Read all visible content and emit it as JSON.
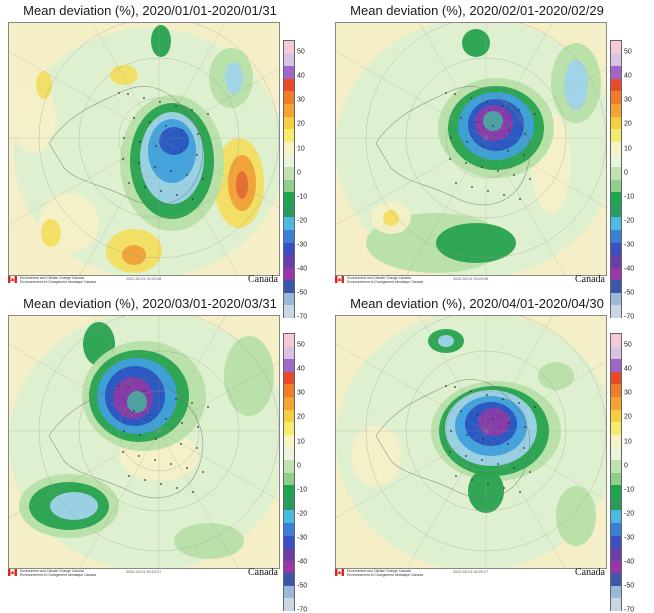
{
  "panels": [
    {
      "id": "jan",
      "title": "Mean deviation (%), 2020/01/01-2020/01/31",
      "timestamp": "2020-02-01 00:20:08"
    },
    {
      "id": "feb",
      "title": "Mean deviation (%), 2020/02/01-2020/02/29",
      "timestamp": "2020-03-01 00:20:08"
    },
    {
      "id": "mar",
      "title": "Mean deviation (%), 2020/03/01-2020/03/31",
      "timestamp": "2020-04-01 00:20:27"
    },
    {
      "id": "apr",
      "title": "Mean deviation (%), 2020/04/01-2020/04/30",
      "timestamp": "2020-05-01 00:20:27"
    }
  ],
  "legend": {
    "ticks": [
      "50",
      "40",
      "30",
      "20",
      "10",
      "0",
      "-10",
      "-20",
      "-30",
      "-40",
      "-50",
      "-70"
    ],
    "colors": [
      "#f6c9d6",
      "#d9c3e4",
      "#a066c8",
      "#e84a2a",
      "#f07d2a",
      "#f5a434",
      "#f5cf3f",
      "#f4ec6a",
      "#f7f3c4",
      "#e8f4dc",
      "#bfe2b0",
      "#8fcf8a",
      "#1fa54d",
      "#2a9b5e",
      "#4cb9e3",
      "#3a7fd6",
      "#3a4fc2",
      "#6a3ea8",
      "#9a37a8",
      "#3b58a8",
      "#9cb8d8",
      "#c9d6e6"
    ]
  },
  "footer": {
    "org_line1": "Environment and Climate Change Canada",
    "org_line2": "Environnement et Changement climatique Canada",
    "wordmark": "Canada"
  }
}
